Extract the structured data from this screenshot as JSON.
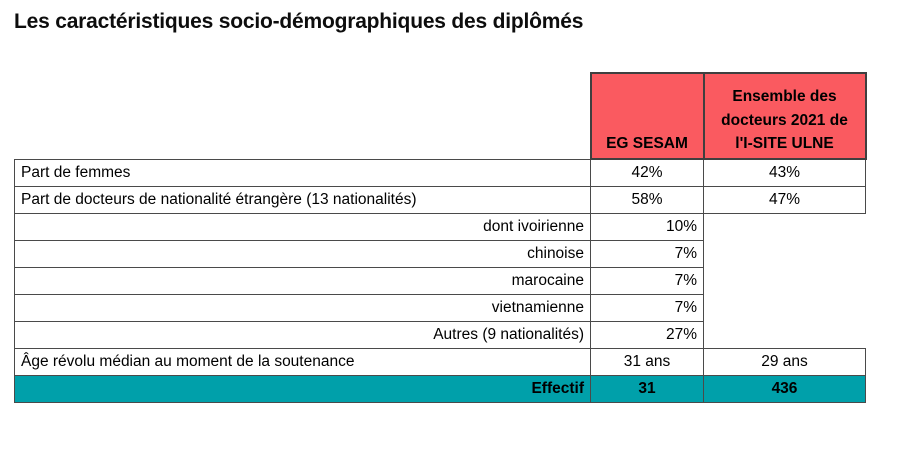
{
  "page_title": "Les caractéristiques socio-démographiques des diplômés",
  "colors": {
    "header_bg": "#FA5A60",
    "footer_bg": "#00A0AA",
    "border": "#4a4a4a",
    "text": "#000000"
  },
  "table": {
    "headers": {
      "col2": "EG SESAM",
      "col3": "Ensemble des docteurs 2021 de l'I-SITE ULNE"
    },
    "rows": [
      {
        "label": "Part de femmes",
        "eg_sesam": "42%",
        "ensemble": "43%"
      },
      {
        "label": "Part de docteurs de nationalité étrangère (13 nationalités)",
        "eg_sesam": "58%",
        "ensemble": "47%"
      },
      {
        "label": "dont ivoirienne",
        "eg_sesam": "10%",
        "ensemble": ""
      },
      {
        "label": "chinoise",
        "eg_sesam": "7%",
        "ensemble": ""
      },
      {
        "label": "marocaine",
        "eg_sesam": "7%",
        "ensemble": ""
      },
      {
        "label": "vietnamienne",
        "eg_sesam": "7%",
        "ensemble": ""
      },
      {
        "label": "Autres (9 nationalités)",
        "eg_sesam": "27%",
        "ensemble": ""
      },
      {
        "label": "Âge révolu médian au moment de la soutenance",
        "eg_sesam": "31 ans",
        "ensemble": "29 ans"
      },
      {
        "label": "Effectif",
        "eg_sesam": "31",
        "ensemble": "436"
      }
    ]
  }
}
